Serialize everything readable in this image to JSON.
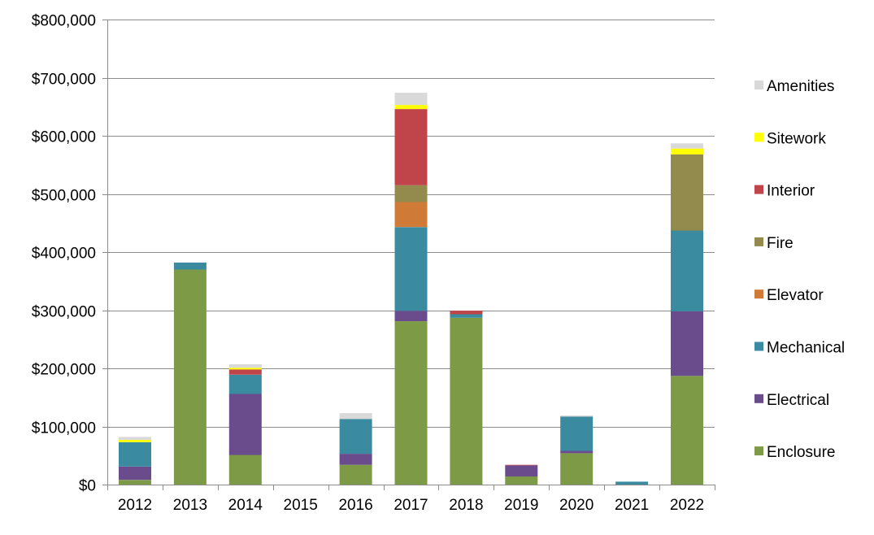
{
  "chart_data": {
    "type": "bar",
    "stacked": true,
    "title": "",
    "xlabel": "",
    "ylabel": "",
    "categories": [
      "2012",
      "2013",
      "2014",
      "2015",
      "2016",
      "2017",
      "2018",
      "2019",
      "2020",
      "2021",
      "2022"
    ],
    "ylim": [
      0,
      800000
    ],
    "yticks": [
      0,
      100000,
      200000,
      300000,
      400000,
      500000,
      600000,
      700000,
      800000
    ],
    "ytick_labels": [
      "$0",
      "$100,000",
      "$200,000",
      "$300,000",
      "$400,000",
      "$500,000",
      "$600,000",
      "$700,000",
      "$800,000"
    ],
    "grid": "horizontal",
    "legend_position": "right",
    "series": [
      {
        "name": "Enclosure",
        "color": "#7d9a46",
        "values": [
          8000,
          370000,
          51000,
          0,
          34000,
          281000,
          287000,
          14000,
          54000,
          0,
          187000
        ]
      },
      {
        "name": "Electrical",
        "color": "#6a4c8c",
        "values": [
          23000,
          0,
          105000,
          0,
          19000,
          18000,
          0,
          19000,
          4000,
          0,
          111000
        ]
      },
      {
        "name": "Mechanical",
        "color": "#3a8aa0",
        "values": [
          42000,
          12000,
          33000,
          0,
          60000,
          144000,
          6000,
          0,
          59000,
          5000,
          139000
        ]
      },
      {
        "name": "Elevator",
        "color": "#d07a38",
        "values": [
          0,
          0,
          0,
          0,
          0,
          43000,
          0,
          0,
          0,
          0,
          0
        ]
      },
      {
        "name": "Fire",
        "color": "#938b4e",
        "values": [
          0,
          0,
          0,
          0,
          0,
          29000,
          0,
          0,
          0,
          0,
          131000
        ]
      },
      {
        "name": "Interior",
        "color": "#c0454a",
        "values": [
          0,
          0,
          9000,
          0,
          0,
          131000,
          6000,
          1000,
          0,
          0,
          0
        ]
      },
      {
        "name": "Sitework",
        "color": "#ffff00",
        "values": [
          4000,
          0,
          3000,
          0,
          0,
          7000,
          0,
          0,
          0,
          0,
          10000
        ]
      },
      {
        "name": "Amenities",
        "color": "#d9d9d9",
        "values": [
          5000,
          0,
          6000,
          0,
          10000,
          21000,
          0,
          0,
          2000,
          0,
          9000
        ]
      }
    ]
  }
}
